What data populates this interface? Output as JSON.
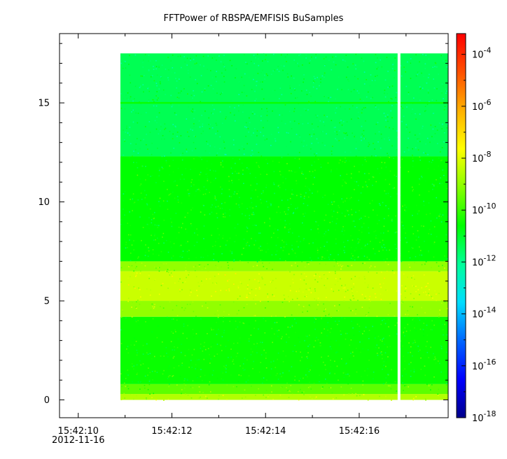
{
  "chart_data": {
    "type": "heatmap",
    "title": "FFTPower of RBSPA/EMFISIS  BuSamples",
    "xlabel": "",
    "ylabel": "",
    "x_axis": {
      "type": "time",
      "range": [
        "2012-11-16 15:42:09.6",
        "2012-11-16 15:42:17.9"
      ],
      "ticks": [
        {
          "value": "15:42:10",
          "label": "15:42:10",
          "sublabel": "2012-11-16"
        },
        {
          "value": "15:42:12",
          "label": "15:42:12"
        },
        {
          "value": "15:42:14",
          "label": "15:42:14"
        },
        {
          "value": "15:42:16",
          "label": "15:42:16"
        }
      ],
      "minor_tick_step_seconds": 1
    },
    "y_axis": {
      "range": [
        -0.9,
        18.5
      ],
      "ticks": [
        0,
        5,
        10,
        15
      ],
      "minor_tick_step": 1
    },
    "colorbar": {
      "scale": "log",
      "range_exponent": [
        -18,
        -3.2
      ],
      "tick_exponents": [
        -18,
        -16,
        -14,
        -12,
        -10,
        -8,
        -6,
        -4
      ],
      "tick_base": "10",
      "colormap": [
        "#00008b",
        "#0000ff",
        "#0066ff",
        "#00ddff",
        "#00ff99",
        "#00ff00",
        "#88ff00",
        "#ffff00",
        "#ffb000",
        "#ff5000",
        "#ff0000"
      ]
    },
    "data_extent": {
      "x_start": "15:42:10.9",
      "x_end": "15:42:17.9",
      "y_start": 0,
      "y_end": 17.5
    },
    "data_gap": {
      "x": "15:42:16.85"
    },
    "frequency_bands": [
      {
        "y_from": 0.0,
        "y_to": 0.3,
        "log10_power": -8.6
      },
      {
        "y_from": 0.3,
        "y_to": 0.8,
        "log10_power": -9.6
      },
      {
        "y_from": 0.8,
        "y_to": 4.2,
        "log10_power": -10.5
      },
      {
        "y_from": 4.2,
        "y_to": 5.0,
        "log10_power": -9.0
      },
      {
        "y_from": 5.0,
        "y_to": 6.5,
        "log10_power": -8.3
      },
      {
        "y_from": 6.5,
        "y_to": 7.0,
        "log10_power": -9.0
      },
      {
        "y_from": 7.0,
        "y_to": 12.3,
        "log10_power": -10.6
      },
      {
        "y_from": 12.3,
        "y_to": 17.5,
        "log10_power": -11.4
      }
    ],
    "spectral_line": {
      "y": 15.0,
      "log10_power": -10.5
    }
  }
}
